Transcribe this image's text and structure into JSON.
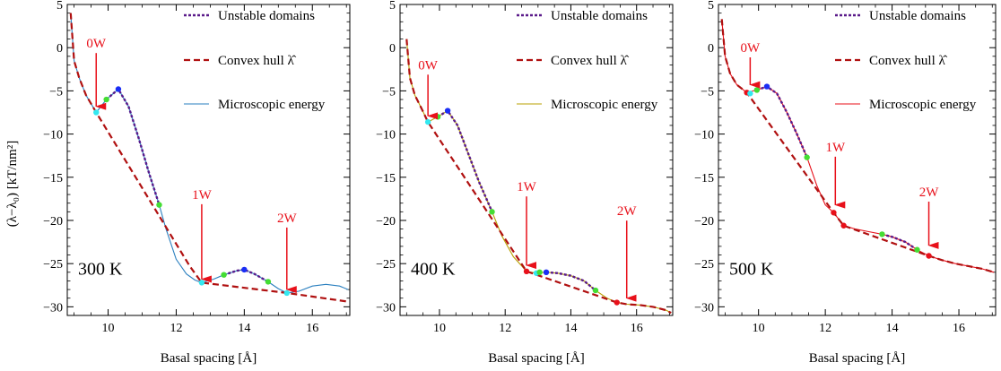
{
  "figure": {
    "ylabel": "(λ−λ₀) [kT/nm²]",
    "xlabel": "Basal spacing [Å]"
  },
  "legend_labels": {
    "unstable": "Unstable domains",
    "hull": "Convex hull",
    "hull_symbol": "λ̂",
    "micro": "Microscopic energy"
  },
  "chart_data": [
    {
      "type": "line",
      "temperature_label": "300 K",
      "xlim": [
        8.8,
        17.1
      ],
      "ylim": [
        -31,
        5
      ],
      "xticks": [
        10,
        12,
        14,
        16
      ],
      "yticks": [
        5,
        0,
        -5,
        -10,
        -15,
        -20,
        -25,
        -30
      ],
      "micro_color": "#2a7fbf",
      "micro": {
        "x": [
          8.9,
          9.0,
          9.15,
          9.35,
          9.65,
          9.95,
          10.3,
          10.6,
          10.9,
          11.2,
          11.5,
          11.7,
          12.0,
          12.3,
          12.55,
          12.75,
          13.1,
          13.4,
          13.8,
          14.0,
          14.3,
          14.7,
          15.0,
          15.25,
          15.6,
          16.0,
          16.4,
          16.8,
          17.05
        ],
        "y": [
          4,
          -1.5,
          -3.5,
          -5.5,
          -7.5,
          -6.0,
          -4.8,
          -6.8,
          -10.5,
          -14.5,
          -18.2,
          -21.0,
          -24.5,
          -26.2,
          -26.9,
          -27.2,
          -26.8,
          -26.3,
          -25.8,
          -25.7,
          -26.2,
          -27.1,
          -27.9,
          -28.4,
          -28.2,
          -27.6,
          -27.4,
          -27.6,
          -28.0
        ]
      },
      "hull": {
        "x": [
          8.9,
          9.0,
          9.15,
          9.35,
          9.65,
          12.4,
          12.75,
          15.25,
          17.05
        ],
        "y": [
          4,
          -1.5,
          -3.5,
          -5.5,
          -7.5,
          -25.3,
          -27.2,
          -28.4,
          -29.4
        ]
      },
      "unstable": [
        {
          "x": [
            9.95,
            10.3,
            10.6,
            10.9,
            11.2,
            11.5
          ],
          "y": [
            -6.0,
            -4.8,
            -6.8,
            -10.5,
            -14.5,
            -18.2
          ]
        },
        {
          "x": [
            13.4,
            13.8,
            14.0,
            14.3,
            14.7
          ],
          "y": [
            -26.3,
            -25.8,
            -25.7,
            -26.2,
            -27.1
          ]
        }
      ],
      "points": [
        {
          "x": 9.65,
          "y": -7.5,
          "color": "#33e8f0"
        },
        {
          "x": 9.95,
          "y": -6.0,
          "color": "#44dd33"
        },
        {
          "x": 10.3,
          "y": -4.8,
          "color": "#1a2ef5"
        },
        {
          "x": 11.5,
          "y": -18.2,
          "color": "#44dd33"
        },
        {
          "x": 12.75,
          "y": -27.2,
          "color": "#33e8f0"
        },
        {
          "x": 13.4,
          "y": -26.3,
          "color": "#44dd33"
        },
        {
          "x": 14.0,
          "y": -25.7,
          "color": "#1a2ef5"
        },
        {
          "x": 14.7,
          "y": -27.1,
          "color": "#44dd33"
        },
        {
          "x": 15.25,
          "y": -28.4,
          "color": "#33e8f0"
        }
      ],
      "annotations": [
        {
          "text": "0W",
          "x": 9.65,
          "y_text": 0,
          "y_head": -6.8
        },
        {
          "text": "1W",
          "x": 12.75,
          "y_text": -17.5,
          "y_head": -26.8
        },
        {
          "text": "2W",
          "x": 15.25,
          "y_text": -20.2,
          "y_head": -28.0
        }
      ]
    },
    {
      "type": "line",
      "temperature_label": "400 K",
      "xlim": [
        8.8,
        17.1
      ],
      "ylim": [
        -31,
        5
      ],
      "xticks": [
        10,
        12,
        14,
        16
      ],
      "yticks": [
        5,
        0,
        -5,
        -10,
        -15,
        -20,
        -25,
        -30
      ],
      "micro_color": "#b8a000",
      "micro": {
        "x": [
          9.0,
          9.1,
          9.25,
          9.45,
          9.65,
          9.95,
          10.25,
          10.55,
          10.85,
          11.2,
          11.6,
          11.9,
          12.25,
          12.65,
          12.95,
          13.25,
          13.6,
          14.0,
          14.4,
          14.75,
          15.1,
          15.4,
          15.7,
          16.1,
          16.5,
          16.9,
          17.05
        ],
        "y": [
          1,
          -3.5,
          -5.5,
          -7.0,
          -8.6,
          -8.0,
          -7.3,
          -9.0,
          -12.0,
          -15.5,
          -19.0,
          -21.8,
          -24.2,
          -25.9,
          -26.1,
          -26.0,
          -26.1,
          -26.4,
          -27.0,
          -28.1,
          -29.0,
          -29.5,
          -29.7,
          -29.8,
          -30.0,
          -30.4,
          -30.7
        ]
      },
      "hull": {
        "x": [
          9.0,
          9.1,
          9.25,
          9.45,
          9.65,
          12.65,
          15.4,
          15.7,
          16.1,
          16.5,
          16.9,
          17.05
        ],
        "y": [
          1,
          -3.5,
          -5.5,
          -7.0,
          -8.6,
          -25.9,
          -29.5,
          -29.7,
          -29.8,
          -30.0,
          -30.4,
          -30.7
        ]
      },
      "unstable": [
        {
          "x": [
            9.95,
            10.25,
            10.55,
            10.85,
            11.2,
            11.6
          ],
          "y": [
            -8.0,
            -7.3,
            -9.0,
            -12.0,
            -15.5,
            -19.0
          ]
        },
        {
          "x": [
            13.25,
            13.6,
            14.0,
            14.4,
            14.75
          ],
          "y": [
            -26.0,
            -26.1,
            -26.4,
            -27.0,
            -28.1
          ]
        }
      ],
      "points": [
        {
          "x": 9.65,
          "y": -8.6,
          "color": "#33e8f0"
        },
        {
          "x": 9.95,
          "y": -8.0,
          "color": "#44dd33"
        },
        {
          "x": 10.25,
          "y": -7.3,
          "color": "#1a2ef5"
        },
        {
          "x": 11.6,
          "y": -19.0,
          "color": "#44dd33"
        },
        {
          "x": 12.65,
          "y": -25.9,
          "color": "#e8101a"
        },
        {
          "x": 12.95,
          "y": -26.1,
          "color": "#33e8f0"
        },
        {
          "x": 13.05,
          "y": -26.0,
          "color": "#44dd33"
        },
        {
          "x": 13.25,
          "y": -26.0,
          "color": "#1a2ef5"
        },
        {
          "x": 14.75,
          "y": -28.1,
          "color": "#44dd33"
        },
        {
          "x": 15.4,
          "y": -29.5,
          "color": "#e8101a"
        }
      ],
      "annotations": [
        {
          "text": "0W",
          "x": 9.65,
          "y_text": -2.5,
          "y_head": -7.9
        },
        {
          "text": "1W",
          "x": 12.65,
          "y_text": -16.6,
          "y_head": -25.2
        },
        {
          "text": "2W",
          "x": 15.7,
          "y_text": -19.4,
          "y_head": -29.0
        }
      ]
    },
    {
      "type": "line",
      "temperature_label": "500 K",
      "xlim": [
        8.8,
        17.1
      ],
      "ylim": [
        -31,
        5
      ],
      "xticks": [
        10,
        12,
        14,
        16
      ],
      "yticks": [
        5,
        0,
        -5,
        -10,
        -15,
        -20,
        -25,
        -30
      ],
      "micro_color": "#e8101a",
      "micro": {
        "x": [
          8.9,
          9.0,
          9.15,
          9.35,
          9.65,
          9.95,
          10.25,
          10.55,
          10.85,
          11.15,
          11.45,
          11.75,
          12.0,
          12.25,
          12.55,
          12.9,
          13.3,
          13.7,
          14.0,
          14.4,
          14.75,
          15.1,
          15.5,
          15.9,
          16.3,
          16.7,
          17.05
        ],
        "y": [
          3.3,
          -1.0,
          -3.0,
          -4.3,
          -5.2,
          -4.9,
          -4.5,
          -5.3,
          -7.5,
          -10.0,
          -12.7,
          -16.0,
          -18.2,
          -19.1,
          -20.6,
          -21.0,
          -21.3,
          -21.6,
          -21.9,
          -22.5,
          -23.4,
          -24.1,
          -24.6,
          -25.0,
          -25.3,
          -25.6,
          -26.0
        ]
      },
      "hull": {
        "x": [
          8.9,
          9.0,
          9.15,
          9.35,
          9.65,
          12.25,
          12.55,
          15.1,
          15.5,
          15.9,
          16.3,
          16.7,
          17.05
        ],
        "y": [
          3.3,
          -1.0,
          -3.0,
          -4.3,
          -5.2,
          -19.1,
          -20.6,
          -24.1,
          -24.6,
          -25.0,
          -25.3,
          -25.6,
          -26.0
        ]
      },
      "unstable": [
        {
          "x": [
            9.95,
            10.25,
            10.55,
            10.85,
            11.15,
            11.45
          ],
          "y": [
            -4.9,
            -4.5,
            -5.3,
            -7.5,
            -10.0,
            -12.7
          ]
        },
        {
          "x": [
            13.7,
            14.0,
            14.4,
            14.75
          ],
          "y": [
            -21.6,
            -21.9,
            -22.5,
            -23.4
          ]
        }
      ],
      "points": [
        {
          "x": 9.65,
          "y": -5.2,
          "color": "#e8101a"
        },
        {
          "x": 9.75,
          "y": -5.3,
          "color": "#33e8f0"
        },
        {
          "x": 9.95,
          "y": -4.9,
          "color": "#44dd33"
        },
        {
          "x": 10.25,
          "y": -4.5,
          "color": "#1a2ef5"
        },
        {
          "x": 11.45,
          "y": -12.7,
          "color": "#44dd33"
        },
        {
          "x": 12.25,
          "y": -19.1,
          "color": "#e8101a"
        },
        {
          "x": 12.55,
          "y": -20.6,
          "color": "#e8101a"
        },
        {
          "x": 13.7,
          "y": -21.6,
          "color": "#44dd33"
        },
        {
          "x": 14.75,
          "y": -23.4,
          "color": "#44dd33"
        },
        {
          "x": 15.1,
          "y": -24.1,
          "color": "#e8101a"
        }
      ],
      "annotations": [
        {
          "text": "0W",
          "x": 9.75,
          "y_text": -0.5,
          "y_head": -4.3
        },
        {
          "text": "1W",
          "x": 12.3,
          "y_text": -12.0,
          "y_head": -18.2
        },
        {
          "text": "2W",
          "x": 15.1,
          "y_text": -17.2,
          "y_head": -22.9
        }
      ]
    }
  ]
}
